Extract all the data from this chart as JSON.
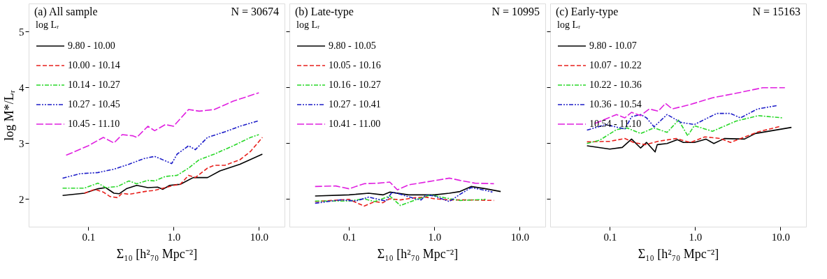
{
  "chart_data": [
    {
      "type": "line",
      "annotations": [
        "(a) All sample",
        "N = 30674"
      ],
      "xlabel": "Σ₁₀ [h²₇₀ Mpc⁻²]",
      "ylabel": "log M*/Lᵣ",
      "legend_title": "log Lᵣ",
      "legend": "top left",
      "log": "x",
      "grid": false,
      "xlim": [
        0.02,
        20
      ],
      "xticks": [
        {
          "value": 0.1,
          "label": "0.1"
        },
        {
          "value": 1,
          "label": "1.0"
        },
        {
          "value": 10,
          "label": "10.0"
        }
      ],
      "ylim": [
        1.5,
        5.5
      ],
      "yticks": [
        2,
        3,
        4,
        5
      ],
      "series": [
        {
          "name": "9.80 - 10.00",
          "color": "#000000",
          "line_style": "solid",
          "x": [
            0.05,
            0.09,
            0.13,
            0.16,
            0.2,
            0.23,
            0.28,
            0.37,
            0.5,
            0.65,
            0.75,
            0.9,
            1.2,
            1.7,
            2.5,
            3.5,
            6,
            11
          ],
          "values": [
            2.06,
            2.1,
            2.18,
            2.2,
            2.1,
            2.09,
            2.18,
            2.24,
            2.2,
            2.21,
            2.17,
            2.24,
            2.26,
            2.38,
            2.38,
            2.5,
            2.62,
            2.8
          ]
        },
        {
          "name": "10.00 - 10.14",
          "color": "#e8201c",
          "line_style": "dashed",
          "x": [
            0.09,
            0.12,
            0.15,
            0.18,
            0.22,
            0.25,
            0.3,
            0.5,
            0.6,
            0.8,
            1.0,
            1.2,
            1.5,
            1.8,
            2.5,
            3,
            4,
            6,
            8,
            11
          ],
          "values": [
            2.1,
            2.17,
            2.12,
            2.04,
            2.02,
            2.1,
            2.08,
            2.14,
            2.15,
            2.2,
            2.24,
            2.26,
            2.42,
            2.38,
            2.55,
            2.6,
            2.6,
            2.7,
            2.85,
            3.1
          ]
        },
        {
          "name": "10.14 - 10.27",
          "color": "#28d828",
          "line_style": "dashdot",
          "x": [
            0.05,
            0.09,
            0.13,
            0.16,
            0.22,
            0.3,
            0.37,
            0.5,
            0.6,
            0.8,
            1.1,
            1.5,
            2,
            3,
            5,
            8,
            10
          ],
          "values": [
            2.19,
            2.19,
            2.28,
            2.2,
            2.22,
            2.32,
            2.27,
            2.33,
            2.32,
            2.4,
            2.42,
            2.55,
            2.7,
            2.8,
            2.95,
            3.1,
            3.15
          ]
        },
        {
          "name": "10.27 - 10.45",
          "color": "#1c1cc8",
          "line_style": "dashdotdot",
          "x": [
            0.05,
            0.08,
            0.13,
            0.2,
            0.3,
            0.45,
            0.6,
            0.8,
            0.95,
            1.1,
            1.5,
            1.8,
            2.5,
            4,
            6,
            10
          ],
          "values": [
            2.37,
            2.45,
            2.47,
            2.53,
            2.62,
            2.72,
            2.76,
            2.68,
            2.63,
            2.8,
            2.95,
            2.88,
            3.1,
            3.2,
            3.3,
            3.4
          ]
        },
        {
          "name": "10.45 - 11.10",
          "color": "#e020e0",
          "line_style": "longdash",
          "x": [
            0.055,
            0.1,
            0.15,
            0.2,
            0.25,
            0.33,
            0.37,
            0.5,
            0.6,
            0.8,
            1.0,
            1.5,
            2,
            3,
            5,
            10
          ],
          "values": [
            2.78,
            2.95,
            3.1,
            3.0,
            3.15,
            3.13,
            3.1,
            3.3,
            3.22,
            3.33,
            3.3,
            3.6,
            3.57,
            3.6,
            3.75,
            3.9
          ]
        }
      ]
    },
    {
      "type": "line",
      "annotations": [
        "(b) Late-type",
        "N = 10995"
      ],
      "xlabel": "Σ₁₀ [h²₇₀ Mpc⁻²]",
      "legend_title": "log Lᵣ",
      "legend": "top left",
      "log": "x",
      "grid": false,
      "tick_labels": "x",
      "xlim": [
        0.02,
        20
      ],
      "xticks": [
        {
          "value": 0.1,
          "label": "0.1"
        },
        {
          "value": 1,
          "label": "1.0"
        },
        {
          "value": 10,
          "label": "10.0"
        }
      ],
      "ylim": [
        1.5,
        5.5
      ],
      "yticks": [
        2,
        3,
        4,
        5
      ],
      "series": [
        {
          "name": "9.80 - 10.05",
          "color": "#000000",
          "line_style": "solid",
          "x": [
            0.04,
            0.1,
            0.17,
            0.25,
            0.3,
            0.5,
            1.0,
            1.5,
            2,
            2.7,
            4,
            6
          ],
          "values": [
            2.05,
            2.07,
            2.1,
            2.07,
            2.12,
            2.07,
            2.07,
            2.1,
            2.13,
            2.22,
            2.18,
            2.13
          ]
        },
        {
          "name": "10.05 - 10.16",
          "color": "#e8201c",
          "line_style": "dashed",
          "x": [
            0.04,
            0.1,
            0.15,
            0.2,
            0.25,
            0.3,
            0.4,
            0.6,
            0.8,
            1.0,
            1.5,
            2.5,
            5
          ],
          "values": [
            1.95,
            1.99,
            1.87,
            1.95,
            1.93,
            2.0,
            1.98,
            2.02,
            2.03,
            2.0,
            1.98,
            1.98,
            1.97
          ]
        },
        {
          "name": "10.16 - 10.27",
          "color": "#28d828",
          "line_style": "dashdot",
          "x": [
            0.04,
            0.1,
            0.15,
            0.2,
            0.3,
            0.4,
            0.6,
            0.9,
            1.3,
            2,
            4
          ],
          "values": [
            1.96,
            1.96,
            2.0,
            1.95,
            2.05,
            1.88,
            1.98,
            2.07,
            2.02,
            1.97,
            1.99
          ]
        },
        {
          "name": "10.27 - 10.41",
          "color": "#1c1cc8",
          "line_style": "dashdotdot",
          "x": [
            0.04,
            0.08,
            0.12,
            0.17,
            0.27,
            0.32,
            0.4,
            0.6,
            0.7,
            0.8,
            1.0,
            1.5,
            2,
            2.7,
            4,
            4.8
          ],
          "values": [
            1.92,
            1.98,
            1.96,
            2.03,
            1.96,
            2.12,
            2.08,
            2.0,
            1.98,
            2.07,
            2.05,
            1.95,
            2.08,
            2.2,
            2.15,
            2.12
          ]
        },
        {
          "name": "10.41 - 11.00",
          "color": "#e020e0",
          "line_style": "longdash",
          "x": [
            0.04,
            0.07,
            0.1,
            0.15,
            0.22,
            0.3,
            0.37,
            0.5,
            0.8,
            1.5,
            2,
            3,
            5
          ],
          "values": [
            2.22,
            2.23,
            2.18,
            2.27,
            2.28,
            2.3,
            2.16,
            2.25,
            2.3,
            2.37,
            2.33,
            2.28,
            2.27
          ]
        }
      ]
    },
    {
      "type": "line",
      "annotations": [
        "(c) Early-type",
        "N = 15163"
      ],
      "xlabel": "Σ₁₀ [h²₇₀ Mpc⁻²]",
      "legend_title": "log Lᵣ",
      "legend": "top left",
      "log": "x",
      "grid": false,
      "tick_labels": "x",
      "xlim": [
        0.02,
        20
      ],
      "xticks": [
        {
          "value": 0.1,
          "label": "0.1"
        },
        {
          "value": 1,
          "label": "1.0"
        },
        {
          "value": 10,
          "label": "10.0"
        }
      ],
      "ylim": [
        1.5,
        5.5
      ],
      "yticks": [
        2,
        3,
        4,
        5
      ],
      "series": [
        {
          "name": "9.80 - 10.07",
          "color": "#000000",
          "line_style": "solid",
          "x": [
            0.054,
            0.1,
            0.14,
            0.18,
            0.23,
            0.27,
            0.34,
            0.36,
            0.47,
            0.62,
            0.73,
            0.98,
            1.34,
            1.66,
            2.2,
            3.8,
            5.1,
            13.5
          ],
          "values": [
            2.95,
            2.89,
            2.92,
            3.07,
            2.91,
            3.01,
            2.84,
            2.97,
            2.99,
            3.06,
            3.01,
            3.01,
            3.07,
            2.99,
            3.08,
            3.07,
            3.17,
            3.28
          ]
        },
        {
          "name": "10.07 - 10.22",
          "color": "#e8201c",
          "line_style": "dashed",
          "x": [
            0.054,
            0.1,
            0.15,
            0.19,
            0.26,
            0.37,
            0.6,
            0.88,
            1.3,
            2.0,
            2.6,
            5.5,
            10.1
          ],
          "values": [
            3.02,
            3.03,
            3.08,
            3.01,
            2.97,
            3.03,
            3.08,
            3.01,
            3.11,
            3.08,
            3.01,
            3.2,
            3.3
          ]
        },
        {
          "name": "10.22 - 10.36",
          "color": "#28d828",
          "line_style": "dashdot",
          "x": [
            0.054,
            0.076,
            0.12,
            0.16,
            0.23,
            0.33,
            0.47,
            0.64,
            0.82,
            0.98,
            1.6,
            3.0,
            5.5,
            10.7
          ],
          "values": [
            2.99,
            3.05,
            3.24,
            3.27,
            3.17,
            3.27,
            3.19,
            3.41,
            3.13,
            3.31,
            3.21,
            3.39,
            3.49,
            3.45
          ]
        },
        {
          "name": "10.36 - 10.54",
          "color": "#1c1cc8",
          "line_style": "dashdotdot",
          "x": [
            0.054,
            0.09,
            0.15,
            0.18,
            0.23,
            0.27,
            0.33,
            0.47,
            0.68,
            0.98,
            1.8,
            2.6,
            3.4,
            5.4,
            9.1
          ],
          "values": [
            3.23,
            3.33,
            3.25,
            3.47,
            3.51,
            3.45,
            3.29,
            3.51,
            3.37,
            3.33,
            3.53,
            3.53,
            3.45,
            3.61,
            3.67
          ]
        },
        {
          "name": "10.54 - 11.10",
          "color": "#e020e0",
          "line_style": "longdash",
          "x": [
            0.067,
            0.12,
            0.15,
            0.18,
            0.23,
            0.29,
            0.37,
            0.45,
            0.54,
            0.88,
            1.6,
            3.0,
            6.2,
            11.3
          ],
          "values": [
            3.35,
            3.51,
            3.45,
            3.55,
            3.49,
            3.61,
            3.57,
            3.71,
            3.61,
            3.69,
            3.81,
            3.89,
            3.99,
            3.99
          ]
        }
      ]
    }
  ]
}
